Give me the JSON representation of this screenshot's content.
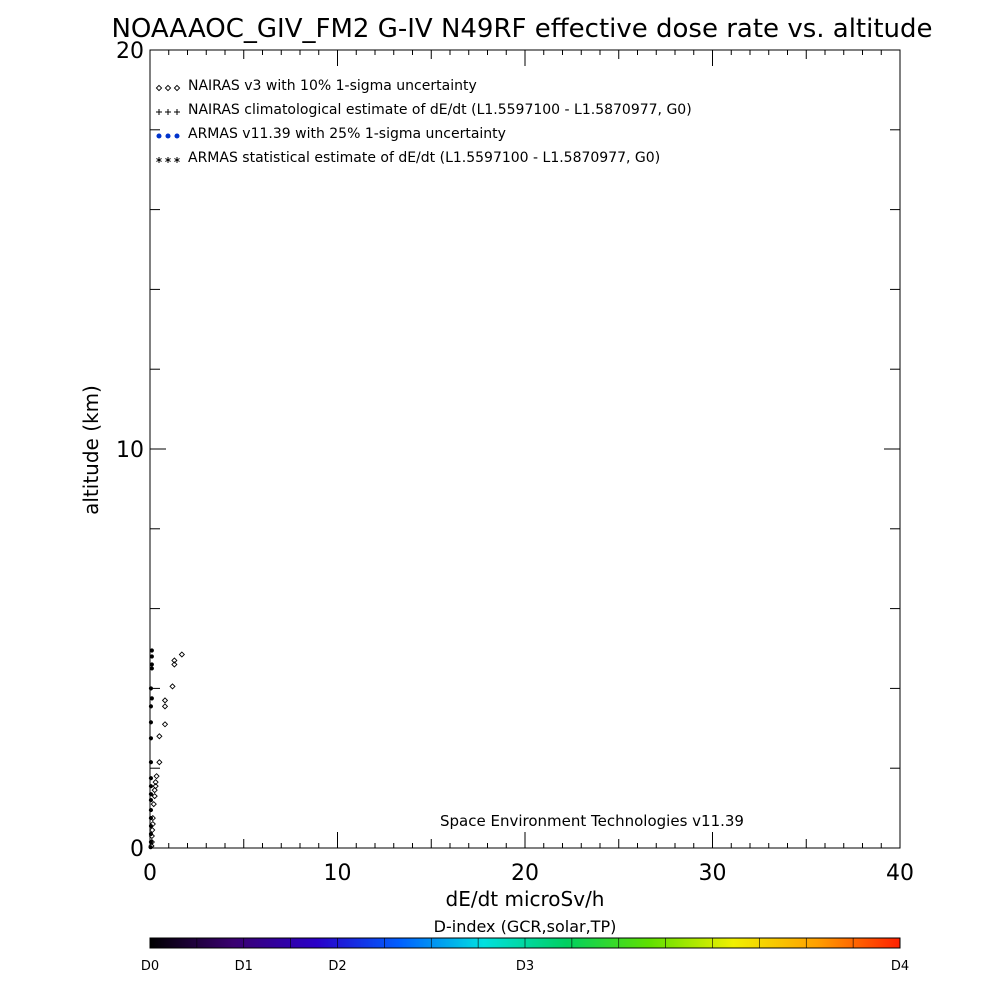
{
  "chart_data": {
    "type": "scatter",
    "title": "NOAAAOC_GIV_FM2 G-IV   N49RF  effective dose rate vs. altitude",
    "xlabel": "dE/dt microSv/h",
    "ylabel": "altitude (km)",
    "xlim": [
      0,
      40
    ],
    "ylim": [
      0,
      20
    ],
    "x_ticks": [
      {
        "value": 0,
        "label": "0"
      },
      {
        "value": 10,
        "label": "10"
      },
      {
        "value": 20,
        "label": "20"
      },
      {
        "value": 30,
        "label": "30"
      },
      {
        "value": 40,
        "label": "40"
      }
    ],
    "y_ticks": [
      {
        "value": 0,
        "label": "0"
      },
      {
        "value": 10,
        "label": "10"
      },
      {
        "value": 20,
        "label": "20"
      }
    ],
    "grid": false,
    "legend_position": "top-left",
    "legend": [
      {
        "marker": "diamond",
        "label": "NAIRAS v3 with 10% 1-sigma uncertainty",
        "color": "#000000"
      },
      {
        "marker": "plus",
        "label": "NAIRAS climatological estimate of dE/dt (L1.5597100 - L1.5870977, G0)",
        "color": "#000000"
      },
      {
        "marker": "dot",
        "label": "ARMAS v11.39 with 25% 1-sigma uncertainty",
        "color": "#0033cc"
      },
      {
        "marker": "asterisk",
        "label": "ARMAS statistical estimate of dE/dt (L1.5597100 - L1.5870977, G0)",
        "color": "#000000"
      }
    ],
    "annotation": "Space Environment Technologies v11.39",
    "series": [
      {
        "marker": "diamond",
        "points": [
          [
            1.7,
            4.85
          ],
          [
            1.3,
            4.7
          ],
          [
            1.3,
            4.6
          ],
          [
            1.2,
            4.05
          ],
          [
            0.8,
            3.7
          ],
          [
            0.8,
            3.55
          ],
          [
            0.8,
            3.1
          ],
          [
            0.5,
            2.8
          ],
          [
            0.5,
            2.15
          ],
          [
            0.35,
            1.8
          ],
          [
            0.3,
            1.65
          ],
          [
            0.3,
            1.55
          ],
          [
            0.25,
            1.45
          ],
          [
            0.25,
            1.3
          ],
          [
            0.2,
            1.1
          ],
          [
            0.15,
            0.75
          ],
          [
            0.15,
            0.6
          ],
          [
            0.12,
            0.45
          ],
          [
            0.1,
            0.3
          ],
          [
            0.1,
            0.15
          ],
          [
            0.08,
            0.05
          ]
        ]
      },
      {
        "marker": "dot",
        "points": [
          [
            0.1,
            4.95
          ],
          [
            0.1,
            4.8
          ],
          [
            0.1,
            4.6
          ],
          [
            0.1,
            4.5
          ],
          [
            0.05,
            4.0
          ],
          [
            0.1,
            3.75
          ],
          [
            0.05,
            3.55
          ],
          [
            0.05,
            3.15
          ],
          [
            0.05,
            2.75
          ],
          [
            0.05,
            2.15
          ],
          [
            0.05,
            1.75
          ],
          [
            0.05,
            1.55
          ],
          [
            0.05,
            1.35
          ],
          [
            0.05,
            1.2
          ],
          [
            0.05,
            0.95
          ],
          [
            0.05,
            0.75
          ],
          [
            0.05,
            0.55
          ],
          [
            0.05,
            0.35
          ],
          [
            0.05,
            0.15
          ],
          [
            0.03,
            0.02
          ]
        ]
      }
    ]
  },
  "colorbar": {
    "title": "D-index (GCR,solar,TP)",
    "labels": [
      {
        "value": 0,
        "label": "D0"
      },
      {
        "value": 1,
        "label": "D1"
      },
      {
        "value": 2,
        "label": "D2"
      },
      {
        "value": 3,
        "label": "D3"
      },
      {
        "value": 4,
        "label": "D4"
      }
    ],
    "gradient_stops": [
      "#000000",
      "#3a0070",
      "#2a00c8",
      "#0060ff",
      "#00e0e0",
      "#00d060",
      "#60e000",
      "#f0f000",
      "#ffa000",
      "#ff2000"
    ]
  }
}
